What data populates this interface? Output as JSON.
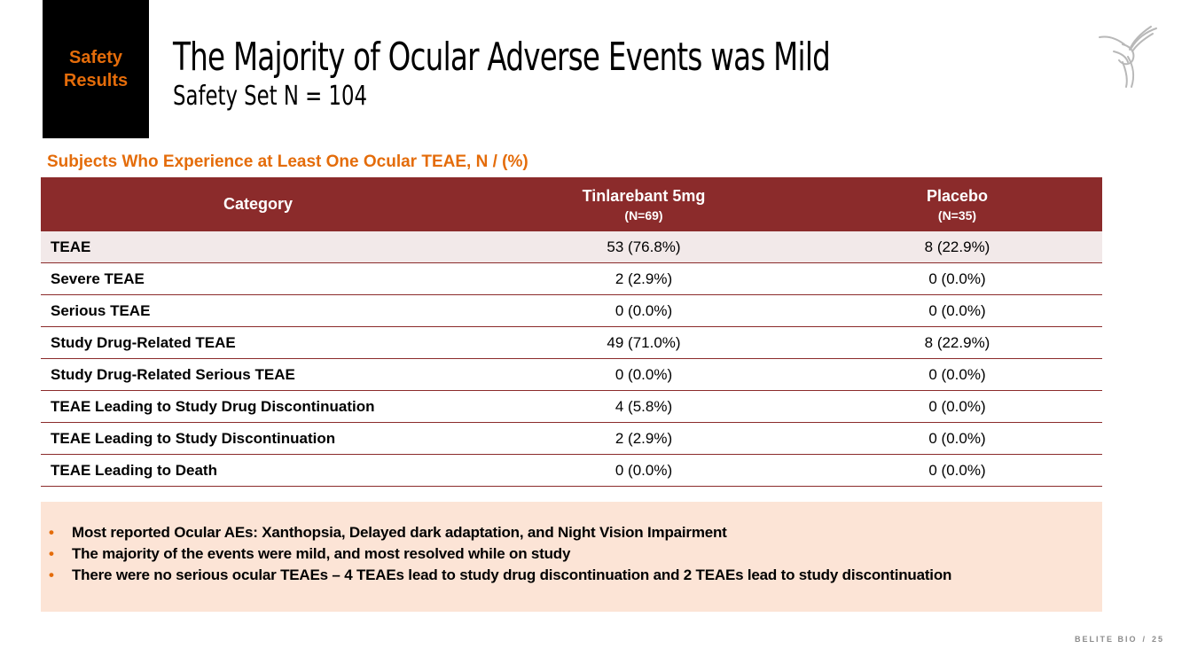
{
  "section": {
    "line1": "Safety",
    "line2": "Results"
  },
  "header": {
    "title": "The Majority of Ocular Adverse Events was Mild",
    "subtitle": "Safety Set N = 104"
  },
  "table": {
    "caption": "Subjects Who Experience at Least One Ocular TEAE, N / (%)",
    "columns": [
      {
        "label": "Category",
        "sub": ""
      },
      {
        "label": "Tinlarebant 5mg",
        "sub": "(N=69)"
      },
      {
        "label": "Placebo",
        "sub": "(N=35)"
      }
    ],
    "rows": [
      {
        "category": "TEAE",
        "tinlarebant": "53 (76.8%)",
        "placebo": "8 (22.9%)"
      },
      {
        "category": "Severe TEAE",
        "tinlarebant": "2 (2.9%)",
        "placebo": "0 (0.0%)"
      },
      {
        "category": "Serious TEAE",
        "tinlarebant": "0 (0.0%)",
        "placebo": "0 (0.0%)"
      },
      {
        "category": "Study Drug-Related TEAE",
        "tinlarebant": "49 (71.0%)",
        "placebo": "8 (22.9%)"
      },
      {
        "category": "Study Drug-Related Serious TEAE",
        "tinlarebant": "0 (0.0%)",
        "placebo": "0 (0.0%)"
      },
      {
        "category": "TEAE Leading to Study Drug Discontinuation",
        "tinlarebant": "4 (5.8%)",
        "placebo": "0 (0.0%)"
      },
      {
        "category": "TEAE Leading to Study Discontinuation",
        "tinlarebant": "2 (2.9%)",
        "placebo": "0 (0.0%)"
      },
      {
        "category": "TEAE Leading to Death",
        "tinlarebant": "0 (0.0%)",
        "placebo": "0 (0.0%)"
      }
    ]
  },
  "notes": {
    "bullet": "•",
    "items": [
      "Most reported Ocular AEs: Xanthopsia, Delayed dark adaptation, and Night Vision Impairment",
      "The majority of the events were mild, and most resolved while on study",
      "There were no serious ocular TEAEs – 4 TEAEs lead to study drug discontinuation and 2 TEAEs lead to study discontinuation"
    ]
  },
  "footer": {
    "brand": "BELITE BIO",
    "separator": "/",
    "page": "25"
  },
  "colors": {
    "accent": "#e46c0a",
    "table_header": "#8b2b2b",
    "row_shade": "#f2e9e9",
    "notes_bg": "#fce4d6",
    "badge_bg": "#000000"
  },
  "icons": {
    "logo": "hummingbird-logo-icon"
  }
}
